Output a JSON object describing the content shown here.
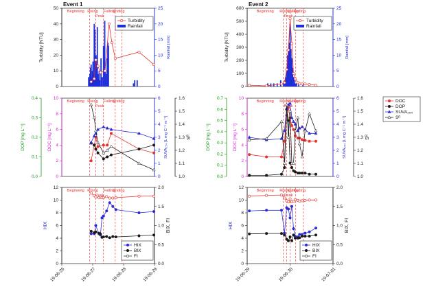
{
  "colors": {
    "turbidity": "#e8302c",
    "rainfall": "#1f2fd8",
    "doc": "#e8302c",
    "dop": "#1a1a1a",
    "suva": "#2b2bd6",
    "sr": "#1a1a1a",
    "hix": "#2b2bd6",
    "bix": "#1a1a1a",
    "fi": "#e8302c",
    "axis_green": "#1a9a1a",
    "axis_magenta": "#d01fd0",
    "axis_blue": "#2b2bd6",
    "phase_lines": "#e8302c"
  },
  "events": [
    {
      "title": "Event 1",
      "x_ticks": [
        "19-06-26",
        "19-06-27",
        "19-06-28",
        "19-06-29"
      ],
      "phases": [
        "Beginning",
        "Rising",
        "Peak",
        "Falling",
        "Ending"
      ],
      "phase_boundaries": [
        0.9,
        1.1,
        1.35,
        1.73,
        1.95
      ],
      "legend": [
        "Turbidity",
        "Rainfall"
      ],
      "legend2": [
        "DOC",
        "DOP",
        "SUVA254",
        "SR"
      ],
      "legend3": [
        "HIX",
        "BIX",
        "FI"
      ]
    },
    {
      "title": "Event 2",
      "x_ticks": [
        "19-06-29",
        "19-06-30",
        "19-07-01"
      ],
      "phases": [
        "Beginning",
        "Rising",
        "Peak",
        "Falling",
        "Ending"
      ],
      "phase_boundaries": [
        0.84,
        0.92,
        1.0,
        1.13,
        1.31
      ],
      "legend": [
        "Turbidity",
        "Rainfall"
      ],
      "legend2": [
        "DOC",
        "DOP",
        "SUVA₂₅₄",
        "Sᴿ"
      ],
      "legend3": [
        "HIX",
        "BIX",
        "FI"
      ]
    }
  ],
  "chart_data": [
    {
      "type": "line",
      "title": "Event 1",
      "panel": "turbidity-rainfall",
      "ylabel_left": "Turbidity [NTU]",
      "ylabel_right": "Rainfall [mm]",
      "ylim_left": [
        0,
        50
      ],
      "ylim_right": [
        0,
        25
      ],
      "yticks_left": [
        0,
        10,
        20,
        30,
        40,
        50
      ],
      "yticks_right": [
        0,
        5,
        10,
        15,
        20,
        25
      ],
      "xlim": [
        0,
        3
      ],
      "series": [
        {
          "name": "Turbidity",
          "x": [
            0.95,
            1.05,
            1.1,
            1.17,
            1.25,
            1.4,
            1.53,
            1.62,
            1.73,
            2.5,
            2.98
          ],
          "y": [
            3,
            5,
            17,
            13,
            9,
            10,
            40,
            28,
            18,
            22,
            14
          ]
        },
        {
          "name": "Rainfall",
          "type": "bar",
          "x": [
            0.87,
            0.89,
            0.91,
            0.93,
            0.95,
            0.97,
            0.99,
            1.01,
            1.03,
            1.05,
            1.07,
            1.09,
            1.11,
            1.13,
            1.15,
            1.17,
            1.19,
            1.21,
            1.23,
            1.27,
            1.31,
            1.35,
            1.39,
            1.41,
            1.45,
            1.47,
            1.49,
            1.51,
            2.32,
            2.36,
            2.44
          ],
          "y": [
            3,
            2,
            4,
            6,
            7,
            3,
            5,
            8,
            4,
            20,
            18,
            6,
            10,
            8,
            19,
            4,
            3,
            5,
            2,
            9,
            3,
            13,
            21,
            5,
            4,
            9,
            14,
            13,
            1,
            2,
            2
          ]
        }
      ]
    },
    {
      "type": "line",
      "title": "Event 1",
      "panel": "doc-dop-suva-sr",
      "ylabel_left_outer": "DOP [mg L⁻¹]",
      "ylabel_left_inner": "DOC [mg L⁻¹]",
      "ylabel_right_inner": "SUVA₂₅₄ [L mg C⁻¹ m⁻¹]",
      "ylabel_right_outer": "Sᴿ",
      "ylim_dop": [
        0,
        0.4
      ],
      "yticks_dop": [
        0.0,
        0.1,
        0.2,
        0.3,
        0.4
      ],
      "ylim_doc": [
        0,
        10
      ],
      "yticks_doc": [
        0,
        2,
        4,
        6,
        8,
        10
      ],
      "ylim_suva": [
        0,
        6
      ],
      "yticks_suva": [
        0,
        1,
        2,
        3,
        4,
        5,
        6
      ],
      "ylim_sr": [
        1.0,
        1.6
      ],
      "yticks_sr": [
        1.0,
        1.1,
        1.2,
        1.3,
        1.4,
        1.5,
        1.6
      ],
      "xlim": [
        0,
        3
      ],
      "series": [
        {
          "name": "DOC",
          "x": [
            0.95,
            1.05,
            1.1,
            1.17,
            1.35,
            1.47,
            1.6,
            2.5,
            2.98
          ],
          "y": [
            2,
            4,
            5,
            3.8,
            4,
            4,
            5.5,
            3.5,
            3
          ]
        },
        {
          "name": "DOP",
          "x": [
            0.95,
            1.05,
            1.1,
            1.17,
            1.35,
            1.47,
            1.6,
            2.5,
            2.98
          ],
          "y": [
            0.17,
            0.16,
            0.14,
            0.12,
            0.09,
            0.1,
            0.11,
            0.14,
            0.16
          ]
        },
        {
          "name": "SUVA254",
          "x": [
            0.95,
            1.05,
            1.1,
            1.17,
            1.35,
            1.47,
            1.6,
            2.5,
            2.98
          ],
          "y": [
            2.6,
            3.1,
            3.3,
            3.6,
            3.8,
            3.7,
            3.6,
            3.3,
            2.9
          ]
        },
        {
          "name": "SR",
          "x": [
            0.95,
            1.05,
            1.1,
            1.17,
            1.35,
            1.47,
            1.6,
            2.5,
            2.98
          ],
          "y": [
            1.55,
            1.45,
            1.35,
            1.26,
            1.18,
            1.2,
            1.23,
            1.1,
            1.05
          ]
        }
      ]
    },
    {
      "type": "line",
      "title": "Event 1",
      "panel": "hix-bix-fi",
      "ylabel_left": "HIX",
      "ylabel_right": "BIX, FI",
      "ylim_left": [
        0,
        12
      ],
      "yticks_left": [
        0,
        2,
        4,
        6,
        8,
        10,
        12
      ],
      "ylim_right": [
        0,
        2.0
      ],
      "yticks_right": [
        0.0,
        0.5,
        1.0,
        1.5,
        2.0
      ],
      "xlim": [
        0,
        3
      ],
      "series": [
        {
          "name": "HIX",
          "x": [
            0.95,
            1.05,
            1.1,
            1.2,
            1.25,
            1.3,
            1.35,
            1.45,
            1.55,
            1.65,
            1.75,
            2.5,
            2.98
          ],
          "y": [
            4.7,
            4.7,
            6.0,
            4.7,
            4.5,
            7.2,
            7.5,
            8.3,
            9.6,
            9.0,
            8.5,
            8.0,
            8.2
          ]
        },
        {
          "name": "BIX",
          "x": [
            0.95,
            1.05,
            1.1,
            1.2,
            1.25,
            1.3,
            1.35,
            1.45,
            1.55,
            1.65,
            1.75,
            2.5,
            2.98
          ],
          "y": [
            0.85,
            0.81,
            0.83,
            0.8,
            0.78,
            0.69,
            0.7,
            0.71,
            0.68,
            0.71,
            0.7,
            0.73,
            0.75
          ]
        },
        {
          "name": "FI",
          "x": [
            0.95,
            1.05,
            1.1,
            1.2,
            1.25,
            1.3,
            1.35,
            1.45,
            1.55,
            1.65,
            1.75,
            2.5,
            2.98
          ],
          "y": [
            1.85,
            1.78,
            1.75,
            1.73,
            1.74,
            1.73,
            1.73,
            1.76,
            1.72,
            1.72,
            1.73,
            1.77,
            1.77
          ]
        }
      ]
    },
    {
      "type": "line",
      "title": "Event 2",
      "panel": "turbidity-rainfall",
      "ylabel_left": "Turbidity [NTU]",
      "ylabel_right": "Rainfall [mm]",
      "ylim_left": [
        0,
        600
      ],
      "yticks_left": [
        0,
        100,
        200,
        300,
        400,
        500,
        600
      ],
      "ylim_right": [
        0,
        25
      ],
      "yticks_right": [
        0,
        5,
        10,
        15,
        20,
        25
      ],
      "xlim": [
        0,
        2
      ],
      "series": [
        {
          "name": "Turbidity",
          "x": [
            0.05,
            0.45,
            0.8,
            0.87,
            0.92,
            0.96,
            1.0,
            1.04,
            1.08,
            1.12,
            1.18,
            1.22,
            1.28,
            1.35,
            1.45,
            1.6
          ],
          "y": [
            10,
            5,
            20,
            30,
            130,
            280,
            520,
            330,
            100,
            60,
            30,
            20,
            20,
            20,
            15,
            10
          ]
        },
        {
          "name": "Rainfall",
          "type": "bar",
          "x": [
            0.48,
            0.55,
            0.62,
            0.7,
            0.78,
            0.85,
            0.88,
            0.9,
            0.92,
            0.94,
            0.96,
            0.98,
            1.0,
            1.02,
            1.04,
            1.06,
            1.08,
            1.1,
            1.12,
            1.15,
            1.2,
            1.3
          ],
          "y": [
            1,
            1,
            1,
            1,
            2,
            1,
            2,
            3,
            5,
            10,
            12,
            14,
            20,
            12,
            9,
            6,
            3,
            2,
            1,
            1,
            1,
            1
          ]
        }
      ]
    },
    {
      "type": "line",
      "title": "Event 2",
      "panel": "doc-dop-suva-sr",
      "ylabel_left_outer": "DOP [mg L⁻¹]",
      "ylabel_left_inner": "DOC [mg L⁻¹]",
      "ylabel_right_inner": "SUVA₂₅₄ [L mg C⁻¹ m⁻¹]",
      "ylabel_right_outer": "Sᴿ",
      "ylim_dop": [
        0,
        0.7
      ],
      "yticks_dop": [
        0.0,
        0.1,
        0.2,
        0.3,
        0.4,
        0.5,
        0.6,
        0.7
      ],
      "ylim_doc": [
        0,
        10
      ],
      "yticks_doc": [
        0,
        2,
        4,
        6,
        8,
        10
      ],
      "ylim_suva": [
        0,
        6
      ],
      "yticks_suva": [
        0,
        1,
        2,
        3,
        4,
        5,
        6
      ],
      "ylim_sr": [
        1.0,
        1.6
      ],
      "yticks_sr": [
        1.0,
        1.1,
        1.2,
        1.3,
        1.4,
        1.5,
        1.6
      ],
      "xlim": [
        0,
        2
      ],
      "series": [
        {
          "name": "DOC",
          "x": [
            0.05,
            0.45,
            0.8,
            0.87,
            0.92,
            0.96,
            1.0,
            1.04,
            1.08,
            1.12,
            1.18,
            1.22,
            1.28,
            1.35,
            1.45,
            1.6
          ],
          "y": [
            2.8,
            2.5,
            2.5,
            4.5,
            7.8,
            8.8,
            7.5,
            6.5,
            6.0,
            5.2,
            4.9,
            4.9,
            4.7,
            4.6,
            4.5,
            4.5
          ]
        },
        {
          "name": "DOP",
          "x": [
            0.05,
            0.45,
            0.8,
            0.87,
            0.92,
            0.96,
            1.0,
            1.04,
            1.08,
            1.12,
            1.18,
            1.22,
            1.28,
            1.35,
            1.45,
            1.6
          ],
          "y": [
            0.01,
            0.01,
            0.02,
            0.08,
            0.6,
            0.5,
            0.12,
            0.08,
            0.05,
            0.04,
            0.03,
            0.03,
            0.03,
            0.03,
            0.02,
            0.02
          ]
        },
        {
          "name": "SUVA254",
          "x": [
            0.05,
            0.45,
            0.8,
            0.87,
            0.92,
            0.96,
            1.0,
            1.04,
            1.08,
            1.12,
            1.18,
            1.22,
            1.28,
            1.35,
            1.45,
            1.6
          ],
          "y": [
            3.0,
            2.8,
            2.9,
            3.5,
            5.2,
            5.5,
            5.6,
            4.5,
            4.2,
            4.0,
            3.5,
            3.7,
            3.8,
            3.6,
            3.3,
            3.3
          ]
        },
        {
          "name": "SR",
          "x": [
            0.05,
            0.45,
            0.8,
            0.87,
            0.92,
            0.96,
            1.0,
            1.04,
            1.08,
            1.12,
            1.18,
            1.22,
            1.28,
            1.35,
            1.45,
            1.6
          ],
          "y": [
            1.28,
            1.29,
            1.42,
            1.1,
            1.55,
            1.3,
            1.5,
            1.1,
            1.1,
            1.35,
            1.45,
            1.25,
            1.15,
            1.35,
            1.48,
            1.35
          ]
        }
      ]
    },
    {
      "type": "line",
      "title": "Event 2",
      "panel": "hix-bix-fi",
      "ylabel_left": "HIX",
      "ylabel_right": "BIX, FI",
      "ylim_left": [
        0,
        12
      ],
      "yticks_left": [
        0,
        2,
        4,
        6,
        8,
        10,
        12
      ],
      "ylim_right": [
        0,
        2.0
      ],
      "yticks_right": [
        0.0,
        0.5,
        1.0,
        1.5,
        2.0
      ],
      "xlim": [
        0,
        2
      ],
      "series": [
        {
          "name": "HIX",
          "x": [
            0.05,
            0.45,
            0.8,
            0.87,
            0.92,
            0.96,
            1.0,
            1.04,
            1.08,
            1.12,
            1.18,
            1.22,
            1.28,
            1.35,
            1.45,
            1.6
          ],
          "y": [
            8.3,
            8.4,
            8.4,
            4.8,
            8.8,
            8.6,
            7.2,
            9.0,
            5.5,
            4.3,
            4.2,
            4.6,
            4.6,
            4.8,
            5.0,
            5.6
          ]
        },
        {
          "name": "BIX",
          "x": [
            0.05,
            0.45,
            0.8,
            0.87,
            0.92,
            0.96,
            1.0,
            1.04,
            1.08,
            1.12,
            1.18,
            1.22,
            1.28,
            1.35,
            1.45,
            1.6
          ],
          "y": [
            0.78,
            0.79,
            0.79,
            0.75,
            0.64,
            0.6,
            0.7,
            0.6,
            0.75,
            0.67,
            0.67,
            0.68,
            0.72,
            0.72,
            0.72,
            0.75
          ]
        },
        {
          "name": "FI",
          "x": [
            0.05,
            0.45,
            0.8,
            0.87,
            0.92,
            0.96,
            1.0,
            1.04,
            1.08,
            1.12,
            1.18,
            1.22,
            1.28,
            1.35,
            1.45,
            1.6
          ],
          "y": [
            1.77,
            1.79,
            1.8,
            1.72,
            1.65,
            1.62,
            1.7,
            1.62,
            1.64,
            1.68,
            1.66,
            1.64,
            1.65,
            1.66,
            1.67,
            1.67
          ]
        }
      ]
    }
  ]
}
